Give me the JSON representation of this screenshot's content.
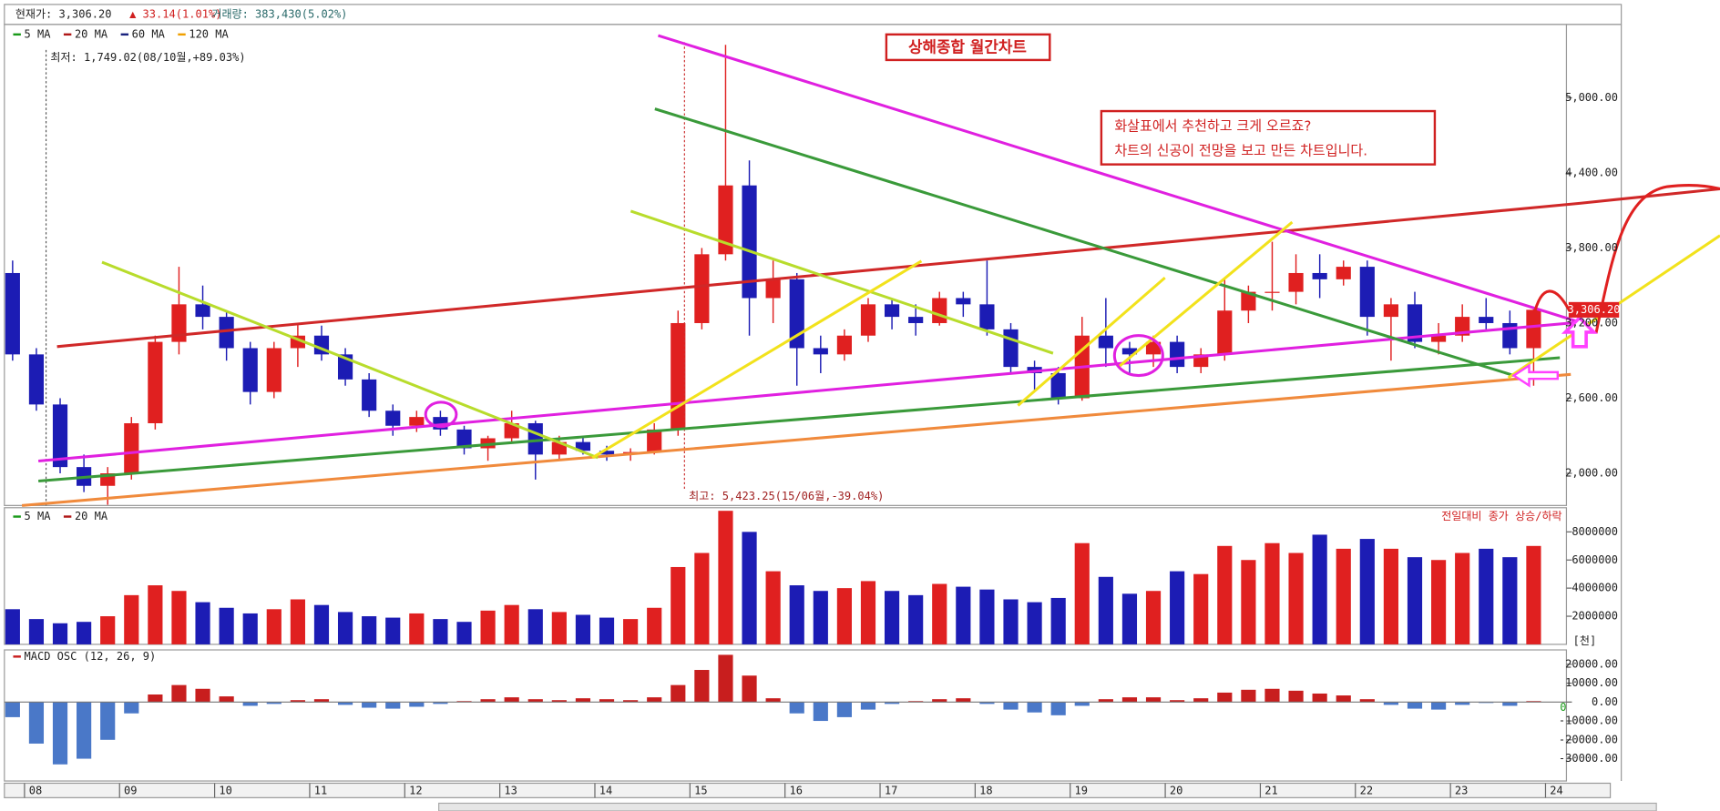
{
  "chart_data": {
    "type": "candlestick",
    "title": "상해종합 월간차트",
    "info": [
      "현재가: 3,306.20",
      "▲ 33.14(1.01%)",
      "거래량: 383,430(5.02%)"
    ],
    "note_lines": [
      "화살표에서 추천하고 크게 오르죠?",
      "차트의 신공이 전망을 보고 만든 차트입니다."
    ],
    "low_label": "최저: 1,749.02(08/10월,+89.03%)",
    "high_label": "최고: 5,423.25(15/06월,-39.04%)",
    "ma_legend": [
      {
        "name": "5 MA",
        "color": "#1a9a1a"
      },
      {
        "name": "20 MA",
        "color": "#b01818"
      },
      {
        "name": "60 MA",
        "color": "#1a237e"
      },
      {
        "name": "120 MA",
        "color": "#f0a000"
      }
    ],
    "up_color": "#e02020",
    "down_color": "#1c1cb4",
    "x": [
      2007.875,
      2008.125,
      2008.375,
      2008.625,
      2008.875,
      2009.125,
      2009.375,
      2009.625,
      2009.875,
      2010.125,
      2010.375,
      2010.625,
      2010.875,
      2011.125,
      2011.375,
      2011.625,
      2011.875,
      2012.125,
      2012.375,
      2012.625,
      2012.875,
      2013.125,
      2013.375,
      2013.625,
      2013.875,
      2014.125,
      2014.375,
      2014.625,
      2014.875,
      2015.125,
      2015.375,
      2015.625,
      2015.875,
      2016.125,
      2016.375,
      2016.625,
      2016.875,
      2017.125,
      2017.375,
      2017.625,
      2017.875,
      2018.125,
      2018.375,
      2018.625,
      2018.875,
      2019.125,
      2019.375,
      2019.625,
      2019.875,
      2020.125,
      2020.375,
      2020.625,
      2020.875,
      2021.125,
      2021.375,
      2021.625,
      2021.875,
      2022.125,
      2022.375,
      2022.625,
      2022.875,
      2023.125,
      2023.375,
      2023.625,
      2023.875
    ],
    "open": [
      3600,
      2950,
      2550,
      2050,
      1900,
      2000,
      2400,
      3050,
      3350,
      3250,
      3000,
      2650,
      3000,
      3100,
      2950,
      2750,
      2500,
      2380,
      2450,
      2350,
      2200,
      2280,
      2400,
      2150,
      2250,
      2180,
      2150,
      2170,
      2350,
      3200,
      3750,
      4300,
      3400,
      3550,
      3000,
      2950,
      3100,
      3350,
      3250,
      3200,
      3400,
      3350,
      3150,
      2850,
      2800,
      2600,
      3100,
      3000,
      2950,
      3050,
      2850,
      2950,
      3300,
      3450,
      3450,
      3600,
      3550,
      3650,
      3250,
      3350,
      3050,
      3100,
      3250,
      3200,
      3000
    ],
    "high": [
      3700,
      3000,
      2600,
      2150,
      2050,
      2450,
      3100,
      3650,
      3500,
      3300,
      3050,
      3050,
      3200,
      3180,
      3000,
      2800,
      2550,
      2500,
      2500,
      2380,
      2300,
      2500,
      2420,
      2300,
      2300,
      2220,
      2200,
      2400,
      3300,
      3800,
      5423.25,
      4500,
      3700,
      3600,
      3100,
      3150,
      3400,
      3400,
      3350,
      3450,
      3450,
      3700,
      3200,
      2900,
      2850,
      3250,
      3400,
      3050,
      3100,
      3100,
      3000,
      3550,
      3500,
      3850,
      3750,
      3750,
      3700,
      3700,
      3400,
      3450,
      3200,
      3350,
      3400,
      3300,
      3330
    ],
    "low": [
      2900,
      2500,
      2000,
      1850,
      1749.02,
      1950,
      2350,
      2950,
      3150,
      2900,
      2550,
      2600,
      2850,
      2900,
      2700,
      2450,
      2300,
      2330,
      2300,
      2150,
      2100,
      2250,
      1950,
      2100,
      2150,
      2100,
      2100,
      2150,
      2300,
      3150,
      3700,
      3100,
      3200,
      2700,
      2800,
      2900,
      3050,
      3150,
      3100,
      3180,
      3250,
      3100,
      2800,
      2650,
      2550,
      2580,
      2850,
      2800,
      2850,
      2800,
      2800,
      2900,
      3200,
      3300,
      3350,
      3400,
      3500,
      3100,
      2900,
      3000,
      2950,
      3050,
      3150,
      2950,
      2700
    ],
    "close": [
      2950,
      2550,
      2050,
      1900,
      2000,
      2400,
      3050,
      3350,
      3250,
      3000,
      2650,
      3000,
      3100,
      2950,
      2750,
      2500,
      2380,
      2450,
      2350,
      2200,
      2280,
      2400,
      2150,
      2250,
      2180,
      2150,
      2170,
      2350,
      3200,
      3750,
      4300,
      3400,
      3550,
      3000,
      2950,
      3100,
      3350,
      3250,
      3200,
      3400,
      3350,
      3150,
      2850,
      2800,
      2600,
      3100,
      3000,
      2950,
      3050,
      2850,
      2950,
      3300,
      3450,
      3450,
      3600,
      3550,
      3650,
      3250,
      3350,
      3050,
      3100,
      3250,
      3200,
      3000,
      3306.2
    ],
    "xlim": [
      2007.8,
      2024.22
    ],
    "xticks": [
      {
        "value": 2008,
        "label": "08"
      },
      {
        "value": 2009,
        "label": "09"
      },
      {
        "value": 2010,
        "label": "10"
      },
      {
        "value": 2011,
        "label": "11"
      },
      {
        "value": 2012,
        "label": "12"
      },
      {
        "value": 2013,
        "label": "13"
      },
      {
        "value": 2014,
        "label": "14"
      },
      {
        "value": 2015,
        "label": "15"
      },
      {
        "value": 2016,
        "label": "16"
      },
      {
        "value": 2017,
        "label": "17"
      },
      {
        "value": 2018,
        "label": "18"
      },
      {
        "value": 2019,
        "label": "19"
      },
      {
        "value": 2020,
        "label": "20"
      },
      {
        "value": 2021,
        "label": "21"
      },
      {
        "value": 2022,
        "label": "22"
      },
      {
        "value": 2023,
        "label": "23"
      },
      {
        "value": 2024,
        "label": "24"
      }
    ],
    "ylim": [
      1743,
      5586
    ],
    "yticks": [
      {
        "value": 2000,
        "label": "2,000.00"
      },
      {
        "value": 2600,
        "label": "2,600.00"
      },
      {
        "value": 3200,
        "label": "3,200.00"
      },
      {
        "value": 3800,
        "label": "3,800.00"
      },
      {
        "value": 4400,
        "label": "4,400.00"
      },
      {
        "value": 5000,
        "label": "5,000.00"
      }
    ],
    "price_tag": {
      "value": 3306.2,
      "label": "3,306.20"
    },
    "volume": {
      "legend": [
        {
          "name": "5 MA",
          "color": "#1a9a1a"
        },
        {
          "name": "20 MA",
          "color": "#b01818"
        }
      ],
      "note": "전일대비 종가 상승/하락",
      "unit": "[천]",
      "values": [
        2500000,
        1800000,
        1500000,
        1600000,
        2000000,
        3500000,
        4200000,
        3800000,
        3000000,
        2600000,
        2200000,
        2500000,
        3200000,
        2800000,
        2300000,
        2000000,
        1900000,
        2200000,
        1800000,
        1600000,
        2400000,
        2800000,
        2500000,
        2300000,
        2100000,
        1900000,
        1800000,
        2600000,
        5500000,
        6500000,
        9500000,
        8000000,
        5200000,
        4200000,
        3800000,
        4000000,
        4500000,
        3800000,
        3500000,
        4300000,
        4100000,
        3900000,
        3200000,
        3000000,
        3300000,
        7200000,
        4800000,
        3600000,
        3800000,
        5200000,
        5000000,
        7000000,
        6000000,
        7200000,
        6500000,
        7800000,
        6800000,
        7500000,
        6800000,
        6200000,
        6000000,
        6500000,
        6800000,
        6200000,
        7000000
      ],
      "ylim": [
        0,
        9720000
      ],
      "yticks": [
        2000000,
        4000000,
        6000000,
        8000000
      ]
    },
    "macd": {
      "name": "MACD OSC (12, 26, 9)",
      "color": "#c81e1e",
      "up_color": "#c81e1e",
      "down_color": "#4a78c8",
      "end_label": "0",
      "values": [
        -8000,
        -22000,
        -33000,
        -30000,
        -20000,
        -6000,
        4000,
        9000,
        7000,
        3000,
        -2000,
        -1000,
        1000,
        1500,
        -1500,
        -3000,
        -3500,
        -2500,
        -1000,
        500,
        1500,
        2500,
        1500,
        1000,
        2000,
        1500,
        1000,
        2500,
        9000,
        17000,
        25000,
        14000,
        2000,
        -6000,
        -10000,
        -8000,
        -4000,
        -1000,
        500,
        1500,
        2000,
        -1000,
        -4000,
        -5500,
        -7000,
        -2000,
        1500,
        2500,
        2500,
        1000,
        2000,
        5000,
        6500,
        7000,
        6000,
        4500,
        3500,
        1500,
        -1500,
        -3500,
        -4000,
        -1500,
        -500,
        -2000,
        500
      ],
      "ylim": [
        -41800,
        27600
      ],
      "yticks": [
        {
          "value": -30000,
          "label": "-30000.00"
        },
        {
          "value": -20000,
          "label": "-20000.00"
        },
        {
          "value": -10000,
          "label": "-10000.00"
        },
        {
          "value": 0,
          "label": "0.00"
        },
        {
          "value": 10000,
          "label": "10000.00"
        },
        {
          "value": 20000,
          "label": "20000.00"
        }
      ]
    }
  }
}
